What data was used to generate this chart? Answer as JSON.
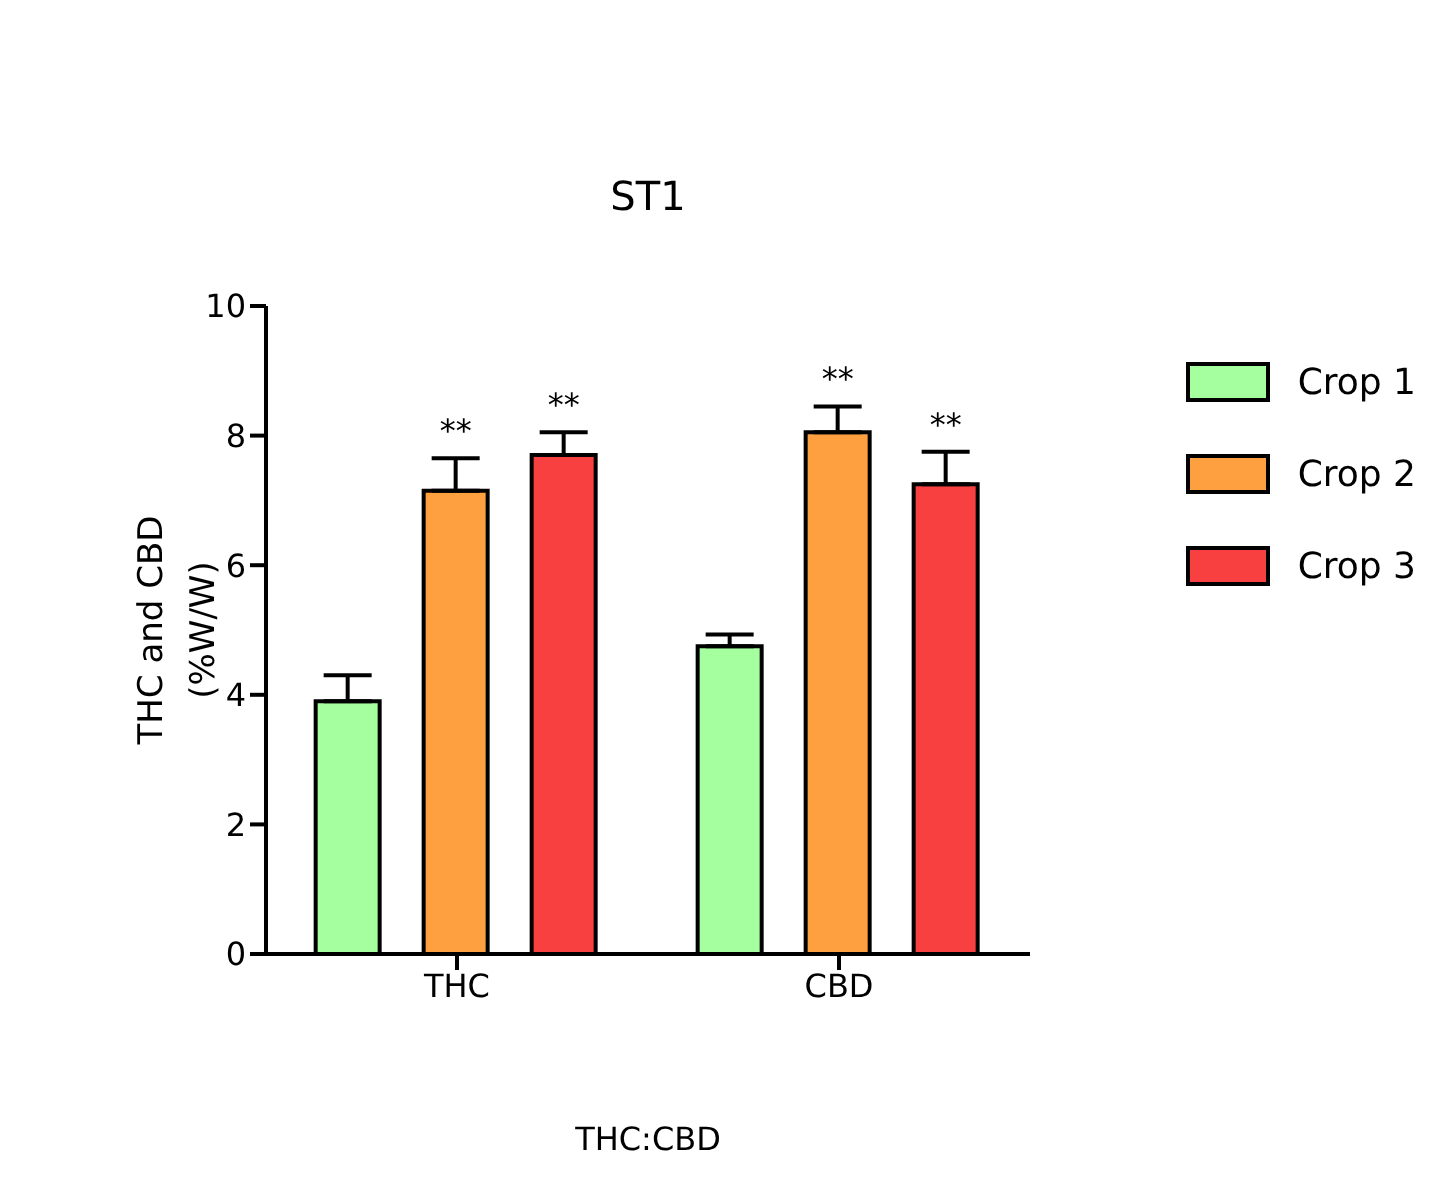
{
  "chart_data": {
    "type": "bar",
    "title": "ST1",
    "xlabel": "THC:CBD",
    "ylabel": "THC and CBD\n(%W/W)",
    "categories": [
      "THC",
      "CBD"
    ],
    "series": [
      {
        "name": "Crop 1",
        "color": "#a6ff9e",
        "values": [
          3.9,
          4.75
        ],
        "errors": [
          [
            3.9,
            4.3
          ],
          [
            4.75,
            4.93
          ]
        ]
      },
      {
        "name": "Crop 2",
        "color": "#ffa040",
        "values": [
          7.15,
          8.05
        ],
        "errors": [
          [
            7.15,
            7.65
          ],
          [
            8.05,
            8.45
          ]
        ],
        "value_labels": [
          "**",
          "**"
        ]
      },
      {
        "name": "Crop 3",
        "color": "#f84040",
        "values": [
          7.7,
          7.25
        ],
        "errors": [
          [
            7.7,
            8.05
          ],
          [
            7.25,
            7.75
          ]
        ],
        "value_labels": [
          "**",
          "**"
        ]
      }
    ],
    "ylim": [
      0,
      10
    ],
    "yticks": [
      0,
      2,
      4,
      6,
      8,
      10
    ],
    "grid": false,
    "legend": "top right"
  }
}
